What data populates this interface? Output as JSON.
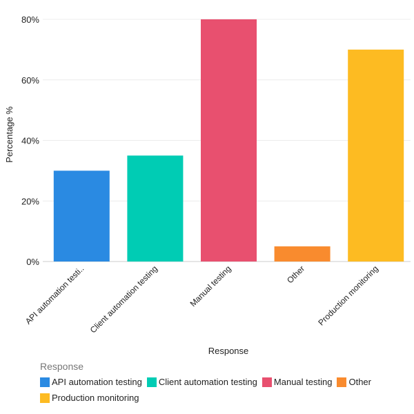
{
  "chart_data": {
    "type": "bar",
    "categories": [
      "API automation testing",
      "Client automation testing",
      "Manual testing",
      "Other",
      "Production monitoring"
    ],
    "tick_labels": [
      "API automation testi..",
      "Client automation testing",
      "Manual testing",
      "Other",
      "Production monitoring"
    ],
    "values": [
      30,
      35,
      80,
      5,
      70
    ],
    "colors": [
      "#2a8ae2",
      "#00ccb4",
      "#e8506f",
      "#f98b2e",
      "#fdbb22"
    ],
    "xlabel": "Response",
    "ylabel": "Percentage %",
    "ylim": [
      0,
      80
    ],
    "yticks": [
      0,
      20,
      40,
      60,
      80
    ],
    "ytick_labels": [
      "0%",
      "20%",
      "40%",
      "60%",
      "80%"
    ],
    "grid": true,
    "legend": {
      "title": "Response",
      "placement": "bottom-left"
    }
  }
}
